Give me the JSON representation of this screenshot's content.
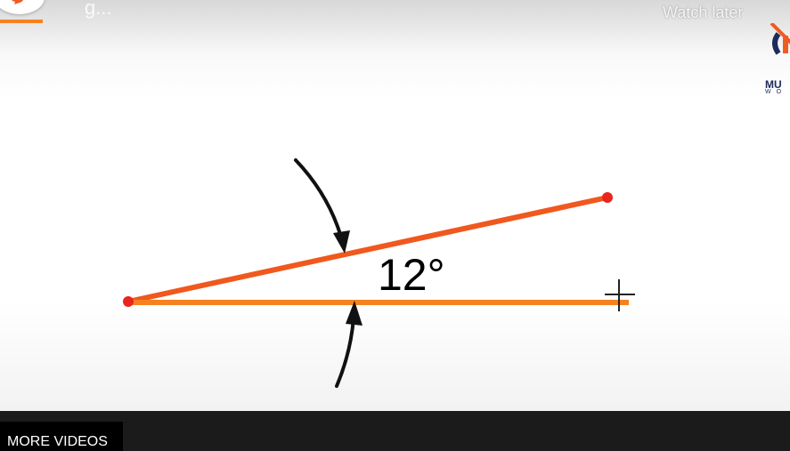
{
  "overlay": {
    "title": "g...",
    "watch_later_label": "Watch later",
    "brand_name": "MU",
    "brand_sub": "WO"
  },
  "diagram": {
    "angle_label": "12°",
    "colors": {
      "upper_ray": "#f0581e",
      "lower_ray": "#f5821f",
      "endpoint": "#e8261c",
      "arrow": "#111111"
    },
    "icons": [
      "cursor-crosshair-icon",
      "arrow-icon"
    ]
  },
  "footer": {
    "more_videos_label": "MORE VIDEOS"
  }
}
